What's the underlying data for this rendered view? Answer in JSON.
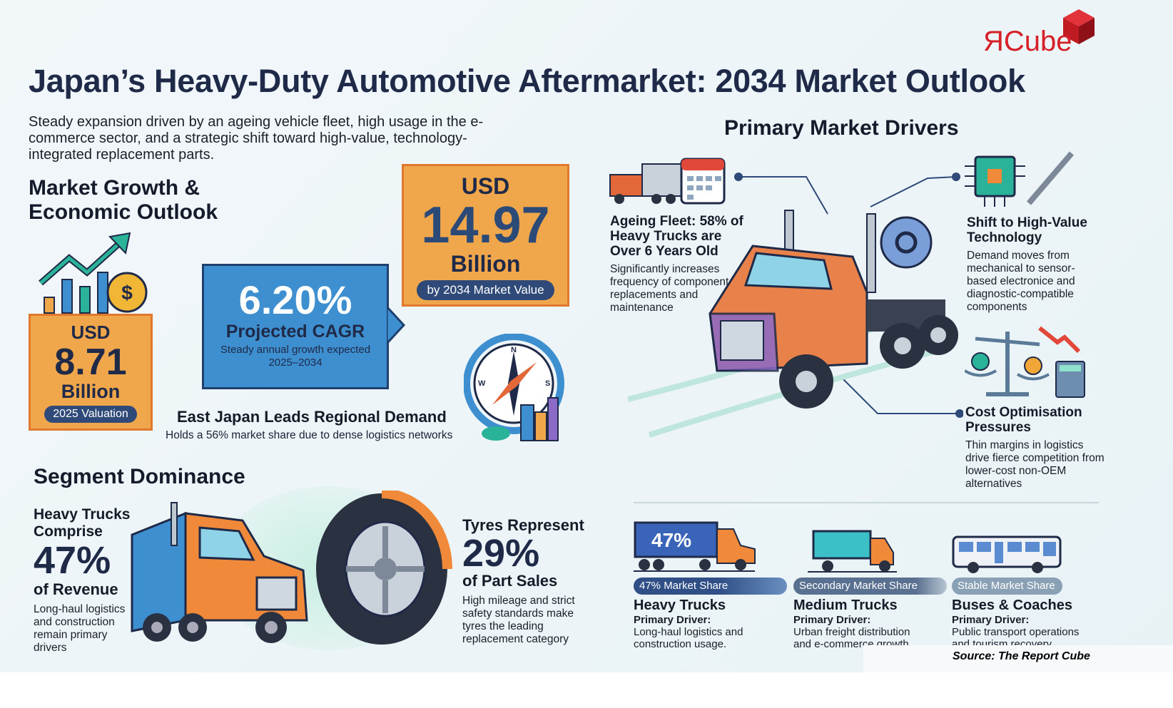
{
  "logo": {
    "text": "ЯCube"
  },
  "title": "Japan’s Heavy-Duty Automotive Aftermarket: 2034 Market Outlook",
  "subtitle": "Steady expansion driven by an ageing vehicle fleet, high usage in the e-commerce sector, and a strategic shift toward high-value, technology-integrated replacement parts.",
  "growth": {
    "heading": "Market Growth & Economic Outlook",
    "valuation_2025": {
      "currency": "USD",
      "value": "8.71",
      "unit": "Billion",
      "label": "2025 Valuation"
    },
    "cagr": {
      "value": "6.20%",
      "label": "Projected CAGR",
      "note": "Steady annual growth expected 2025–2034"
    },
    "value_2034": {
      "currency": "USD",
      "value": "14.97",
      "unit": "Billion",
      "label": "by 2034 Market Value"
    },
    "region": {
      "title": "East Japan Leads Regional Demand",
      "text": "Holds a 56% market share due to dense logistics networks"
    }
  },
  "segment": {
    "heading": "Segment Dominance",
    "heavy": {
      "line1": "Heavy Trucks",
      "line2": "Comprise",
      "value": "47%",
      "line3": "of Revenue",
      "text": "Long-haul logistics and construction remain primary drivers"
    },
    "tyres": {
      "line1": "Tyres Represent",
      "value": "29%",
      "line2": "of Part Sales",
      "text": "High mileage and strict safety standards make tyres the leading replacement category"
    }
  },
  "drivers": {
    "heading": "Primary Market Drivers",
    "items": [
      {
        "title": "Ageing Fleet: 58% of Heavy Trucks are Over 6 Years Old",
        "text": "Significantly increases frequency of component replacements and maintenance"
      },
      {
        "title": "Shift to High-Value Technology",
        "text": "Demand moves from mechanical to sensor-based electronice and diagnostic-compatible components"
      },
      {
        "title": "Cost Optimisation Pressures",
        "text": "Thin margins in logistics drive fierce competition from lower-cost non-OEM alternatives"
      }
    ]
  },
  "vehicles": [
    {
      "badge": "47% Market Share",
      "graphic_value": "47%",
      "name": "Heavy Trucks",
      "driver_label": "Primary Driver:",
      "driver": "Long-haul logistics and construction usage.",
      "color": "#2f4f86",
      "share": 0.47
    },
    {
      "badge": "Secondary Market Share",
      "name": "Medium Trucks",
      "driver_label": "Primary Driver:",
      "driver": "Urban freight distribution and e-commerce growth.",
      "color": "#4e6a90"
    },
    {
      "badge": "Stable Market Share",
      "name": "Buses & Coaches",
      "driver_label": "Primary Driver:",
      "driver": "Public transport operations and tourism recovery",
      "color": "#8aa0b4"
    }
  ],
  "source": "Source: The Report Cube"
}
